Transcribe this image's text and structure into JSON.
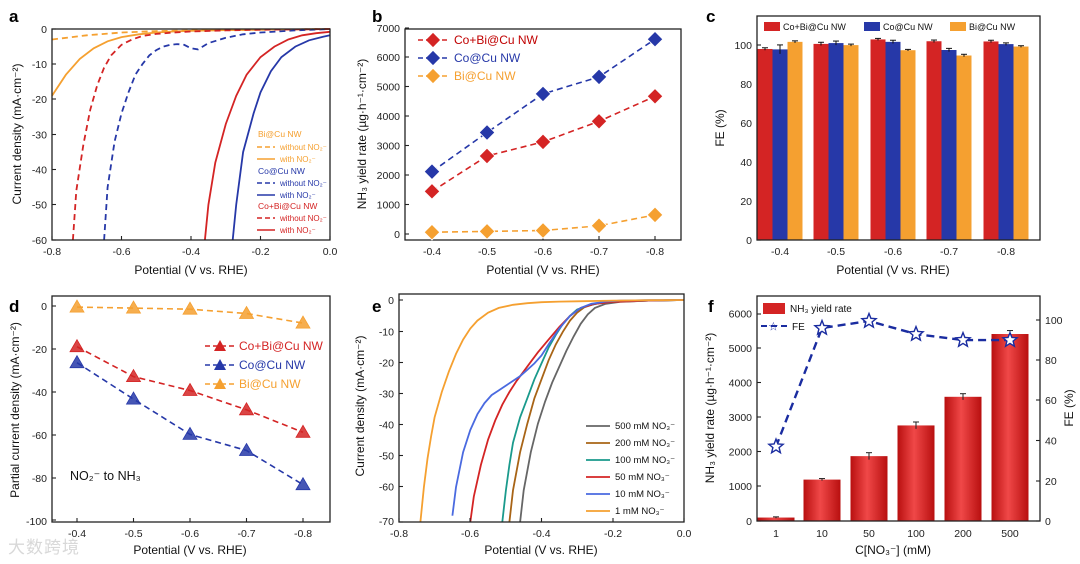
{
  "panels": {
    "a": {
      "label": "a",
      "ylabel": "Current density (mA·cm⁻²)",
      "xlabel": "Potential (V vs. RHE)",
      "xticks": [
        "-0.8",
        "-0.6",
        "-0.4",
        "-0.2",
        "0.0"
      ],
      "yticks": [
        "0",
        "-10",
        "-20",
        "-30",
        "-40",
        "-50",
        "-60"
      ],
      "legend": {
        "bi": "Bi@Cu NW",
        "co": "Co@Cu NW",
        "cobi": "Co+Bi@Cu NW",
        "without": "without NO₂⁻",
        "with": "with NO₂⁻"
      }
    },
    "b": {
      "label": "b",
      "ylabel": "NH₃ yield rate (µg·h⁻¹·cm⁻²)",
      "xlabel": "Potential (V vs. RHE)",
      "xticks": [
        "-0.4",
        "-0.5",
        "-0.6",
        "-0.7",
        "-0.8"
      ],
      "yticks": [
        "0",
        "1000",
        "2000",
        "3000",
        "4000",
        "5000",
        "6000",
        "7000"
      ],
      "legend": [
        "Co+Bi@Cu NW",
        "Co@Cu NW",
        "Bi@Cu NW"
      ]
    },
    "c": {
      "label": "c",
      "ylabel": "FE (%)",
      "xlabel": "Potential (V vs. RHE)",
      "xticks": [
        "-0.4",
        "-0.5",
        "-0.6",
        "-0.7",
        "-0.8"
      ],
      "yticks": [
        "0",
        "20",
        "40",
        "60",
        "80",
        "100"
      ],
      "legend": [
        "Co+Bi@Cu NW",
        "Co@Cu NW",
        "Bi@Cu NW"
      ]
    },
    "d": {
      "label": "d",
      "ylabel": "Partial current density (mA·cm⁻²)",
      "xlabel": "Potential (V vs. RHE)",
      "xticks": [
        "-0.4",
        "-0.5",
        "-0.6",
        "-0.7",
        "-0.8"
      ],
      "yticks": [
        "0",
        "-20",
        "-40",
        "-60",
        "-80",
        "-100"
      ],
      "legend": [
        "Co+Bi@Cu NW",
        "Co@Cu NW",
        "Bi@Cu NW"
      ],
      "annotation": "NO₂⁻ to NH₃"
    },
    "e": {
      "label": "e",
      "ylabel": "Current density (mA·cm⁻²)",
      "xlabel": "Potential (V vs. RHE)",
      "xticks": [
        "-0.8",
        "-0.6",
        "-0.4",
        "-0.2",
        "0.0"
      ],
      "yticks": [
        "0",
        "-10",
        "-20",
        "-30",
        "-40",
        "-50",
        "-60",
        "-70"
      ],
      "legend": [
        "500 mM NO₃⁻",
        "200 mM NO₃⁻",
        "100 mM NO₃⁻",
        "50 mM NO₃⁻",
        "10 mM NO₃⁻",
        "1 mM NO₃⁻"
      ]
    },
    "f": {
      "label": "f",
      "ylabel": "NH₃ yield rate (µg·h⁻¹·cm⁻²)",
      "y2label": "FE (%)",
      "xlabel": "C[NO₃⁻] (mM)",
      "xticks": [
        "1",
        "10",
        "50",
        "100",
        "200",
        "500"
      ],
      "yticks": [
        "0",
        "1000",
        "2000",
        "3000",
        "4000",
        "5000",
        "6000"
      ],
      "y2ticks": [
        "0",
        "20",
        "40",
        "60",
        "80",
        "100"
      ],
      "legend": [
        "NH₃ yield rate",
        "FE"
      ]
    }
  },
  "watermark": "大数跨境",
  "colors": {
    "red": "#d42424",
    "blue": "#2638a8",
    "orange": "#f5a030",
    "gray": "#666666",
    "brown": "#a86416",
    "teal": "#1a9a8c",
    "lightblue": "#4a6ae0"
  },
  "chart_data": [
    {
      "panel": "a",
      "type": "line",
      "title": "",
      "xlabel": "Potential (V vs. RHE)",
      "ylabel": "Current density (mA·cm-2)",
      "xlim": [
        -0.8,
        0.0
      ],
      "ylim": [
        -60,
        0
      ],
      "series": [
        {
          "name": "Bi@Cu NW without NO2-",
          "style": "dashed",
          "color": "orange",
          "x": [
            -0.8,
            -0.7,
            -0.6,
            -0.5,
            -0.4,
            -0.3,
            -0.2,
            -0.1,
            0.0
          ],
          "y": [
            -3,
            -1.8,
            -1,
            -0.6,
            -0.4,
            -0.3,
            -0.2,
            -0.1,
            0
          ]
        },
        {
          "name": "Bi@Cu NW with NO2-",
          "style": "solid",
          "color": "orange",
          "x": [
            -0.8,
            -0.76,
            -0.72,
            -0.68,
            -0.64,
            -0.6,
            -0.55,
            -0.5,
            -0.45,
            -0.4,
            -0.3,
            -0.2,
            -0.1,
            0.0
          ],
          "y": [
            -19,
            -13,
            -8.5,
            -5.5,
            -3.5,
            -2.3,
            -1.5,
            -1,
            -0.7,
            -0.5,
            -0.3,
            -0.2,
            -0.1,
            0
          ]
        },
        {
          "name": "Co@Cu NW without NO2-",
          "style": "dashed",
          "color": "blue",
          "x": [
            -0.65,
            -0.64,
            -0.62,
            -0.6,
            -0.58,
            -0.56,
            -0.54,
            -0.52,
            -0.5,
            -0.48,
            -0.46,
            -0.44,
            -0.42,
            -0.4,
            -0.38,
            -0.35,
            -0.3,
            -0.25,
            -0.2,
            -0.15,
            -0.1,
            -0.05,
            0.0
          ],
          "y": [
            -60,
            -45,
            -32,
            -24,
            -18,
            -13,
            -10,
            -7.5,
            -6,
            -5,
            -4.5,
            -4.3,
            -4.5,
            -5.5,
            -5.8,
            -4,
            -2.5,
            -1.5,
            -1,
            -0.7,
            -0.4,
            -0.2,
            0
          ]
        },
        {
          "name": "Co@Cu NW with NO2-",
          "style": "solid",
          "color": "blue",
          "x": [
            -0.28,
            -0.27,
            -0.25,
            -0.22,
            -0.2,
            -0.17,
            -0.14,
            -0.1,
            -0.06,
            -0.02,
            0.0
          ],
          "y": [
            -60,
            -50,
            -35,
            -24,
            -18,
            -12,
            -8,
            -5,
            -3.2,
            -2.2,
            -1.8
          ]
        },
        {
          "name": "Co+Bi@Cu NW without NO2-",
          "style": "dashed",
          "color": "red",
          "x": [
            -0.74,
            -0.73,
            -0.71,
            -0.69,
            -0.67,
            -0.65,
            -0.63,
            -0.6,
            -0.57,
            -0.54,
            -0.5,
            -0.45,
            -0.4,
            -0.3,
            -0.2,
            -0.1,
            0.0
          ],
          "y": [
            -60,
            -46,
            -33,
            -23,
            -16,
            -11,
            -7.5,
            -4.5,
            -3,
            -2,
            -1.4,
            -1,
            -0.7,
            -0.4,
            -0.2,
            -0.1,
            0
          ]
        },
        {
          "name": "Co+Bi@Cu NW with NO2-",
          "style": "solid",
          "color": "red",
          "x": [
            -0.36,
            -0.35,
            -0.33,
            -0.3,
            -0.27,
            -0.24,
            -0.2,
            -0.16,
            -0.12,
            -0.08,
            -0.04,
            0.0
          ],
          "y": [
            -60,
            -50,
            -38,
            -27,
            -19,
            -13,
            -8,
            -5,
            -3,
            -1.8,
            -1.2,
            -0.8
          ]
        }
      ]
    },
    {
      "panel": "b",
      "type": "line",
      "title": "",
      "xlabel": "Potential (V vs. RHE)",
      "ylabel": "NH3 yield rate (µg·h-1·cm-2)",
      "categories": [
        "-0.4",
        "-0.5",
        "-0.6",
        "-0.7",
        "-0.8"
      ],
      "ylim": [
        0,
        7000
      ],
      "series": [
        {
          "name": "Co+Bi@Cu NW",
          "color": "red",
          "values": [
            1450,
            2650,
            3130,
            3830,
            4680
          ]
        },
        {
          "name": "Co@Cu NW",
          "color": "blue",
          "values": [
            2120,
            3450,
            4760,
            5340,
            6620
          ]
        },
        {
          "name": "Bi@Cu NW",
          "color": "orange",
          "values": [
            60,
            90,
            120,
            280,
            650
          ]
        }
      ]
    },
    {
      "panel": "c",
      "type": "bar",
      "title": "",
      "xlabel": "Potential (V vs. RHE)",
      "ylabel": "FE (%)",
      "categories": [
        "-0.4",
        "-0.5",
        "-0.6",
        "-0.7",
        "-0.8"
      ],
      "ylim": [
        0,
        110
      ],
      "series": [
        {
          "name": "Co+Bi@Cu NW",
          "color": "red",
          "values": [
            93.8,
            96.3,
            98.5,
            97.6,
            97.5
          ],
          "errors": [
            0.6,
            0.8,
            0.5,
            0.6,
            0.6
          ]
        },
        {
          "name": "Co@Cu NW",
          "color": "blue",
          "values": [
            93.6,
            96.7,
            97.3,
            93.3,
            96.2
          ],
          "errors": [
            2.2,
            1.0,
            0.8,
            0.8,
            0.6
          ]
        },
        {
          "name": "Bi@Cu NW",
          "color": "orange",
          "values": [
            97.3,
            95.7,
            93.2,
            90.6,
            95.0
          ],
          "errors": [
            0.5,
            0.5,
            0.4,
            0.6,
            0.4
          ]
        }
      ]
    },
    {
      "panel": "d",
      "type": "line",
      "title": "",
      "xlabel": "Potential (V vs. RHE)",
      "ylabel": "Partial current density (mA·cm-2)",
      "categories": [
        "-0.4",
        "-0.5",
        "-0.6",
        "-0.7",
        "-0.8"
      ],
      "ylim": [
        -100,
        5
      ],
      "series": [
        {
          "name": "Co+Bi@Cu NW",
          "color": "red",
          "values": [
            -19,
            -33,
            -39.5,
            -48.5,
            -59
          ]
        },
        {
          "name": "Co@Cu NW",
          "color": "blue",
          "values": [
            -26.5,
            -43.5,
            -60,
            -67.5,
            -83.5
          ]
        },
        {
          "name": "Bi@Cu NW",
          "color": "orange",
          "values": [
            -0.5,
            -1,
            -1.5,
            -3.5,
            -8
          ]
        }
      ]
    },
    {
      "panel": "e",
      "type": "line",
      "title": "",
      "xlabel": "Potential (V vs. RHE)",
      "ylabel": "Current density (mA·cm-2)",
      "xlim": [
        -0.8,
        0.0
      ],
      "ylim": [
        -70,
        2
      ],
      "series": [
        {
          "name": "500 mM NO3-",
          "color": "gray",
          "x": [
            -0.46,
            -0.45,
            -0.43,
            -0.41,
            -0.39,
            -0.37,
            -0.35,
            -0.33,
            -0.31,
            -0.29,
            -0.27,
            -0.25,
            -0.22,
            -0.18,
            -0.1,
            0.0
          ],
          "y": [
            -70,
            -60,
            -48,
            -39,
            -32,
            -26,
            -21,
            -16,
            -11.5,
            -7.5,
            -4.5,
            -2.5,
            -1.2,
            -0.6,
            -0.2,
            0
          ]
        },
        {
          "name": "200 mM NO3-",
          "color": "brown",
          "x": [
            -0.49,
            -0.48,
            -0.46,
            -0.44,
            -0.42,
            -0.4,
            -0.38,
            -0.36,
            -0.34,
            -0.32,
            -0.3,
            -0.28,
            -0.25,
            -0.2,
            -0.1,
            0.0
          ],
          "y": [
            -70,
            -60,
            -48,
            -39,
            -31,
            -25,
            -19,
            -14,
            -10,
            -6.5,
            -4,
            -2.3,
            -1.2,
            -0.5,
            -0.2,
            0
          ]
        },
        {
          "name": "100 mM NO3-",
          "color": "teal",
          "x": [
            -0.51,
            -0.5,
            -0.49,
            -0.48,
            -0.46,
            -0.44,
            -0.42,
            -0.4,
            -0.38,
            -0.36,
            -0.34,
            -0.32,
            -0.3,
            -0.27,
            -0.24,
            -0.2,
            -0.1,
            0.0
          ],
          "y": [
            -70,
            -60,
            -52,
            -45,
            -37,
            -31,
            -25,
            -20,
            -15,
            -11,
            -7.5,
            -5,
            -3,
            -1.8,
            -1,
            -0.5,
            -0.2,
            0
          ]
        },
        {
          "name": "50 mM NO3-",
          "color": "red",
          "x": [
            -0.6,
            -0.59,
            -0.57,
            -0.55,
            -0.53,
            -0.51,
            -0.49,
            -0.47,
            -0.45,
            -0.43,
            -0.41,
            -0.38,
            -0.35,
            -0.32,
            -0.29,
            -0.25,
            -0.2,
            -0.1,
            0.0
          ],
          "y": [
            -70,
            -62,
            -52,
            -44,
            -38,
            -33,
            -29,
            -25.5,
            -22.5,
            -19.5,
            -16.5,
            -12.5,
            -8.5,
            -5,
            -2.5,
            -1.2,
            -0.6,
            -0.2,
            0
          ]
        },
        {
          "name": "10 mM NO3-",
          "color": "lightblue",
          "x": [
            -0.65,
            -0.64,
            -0.62,
            -0.6,
            -0.58,
            -0.56,
            -0.54,
            -0.52,
            -0.5,
            -0.48,
            -0.46,
            -0.44,
            -0.42,
            -0.4,
            -0.38,
            -0.35,
            -0.32,
            -0.29,
            -0.26,
            -0.22,
            -0.18,
            -0.1,
            0.0
          ],
          "y": [
            -68,
            -59,
            -48,
            -41,
            -36,
            -32.5,
            -30,
            -28.5,
            -27,
            -25.5,
            -24,
            -22,
            -20,
            -17.5,
            -14,
            -9,
            -5,
            -2.5,
            -1.2,
            -0.5,
            -0.2,
            -0.05,
            0
          ]
        },
        {
          "name": "1 mM NO3-",
          "color": "orange",
          "x": [
            -0.74,
            -0.73,
            -0.72,
            -0.71,
            -0.7,
            -0.68,
            -0.66,
            -0.64,
            -0.62,
            -0.6,
            -0.58,
            -0.55,
            -0.52,
            -0.48,
            -0.44,
            -0.4,
            -0.35,
            -0.3,
            -0.2,
            -0.1,
            0.0
          ],
          "y": [
            -70,
            -59,
            -50,
            -43,
            -37,
            -29,
            -22.5,
            -17,
            -12.5,
            -9,
            -6.5,
            -4,
            -2.5,
            -1.5,
            -1,
            -0.7,
            -0.5,
            -0.4,
            -0.2,
            -0.05,
            0
          ]
        }
      ]
    },
    {
      "panel": "f",
      "type": "bar",
      "title": "",
      "xlabel": "C[NO3-] (mM)",
      "ylabel": "NH3 yield rate (µg·h-1·cm-2)",
      "y2label": "FE (%)",
      "categories": [
        "1",
        "10",
        "50",
        "100",
        "200",
        "500"
      ],
      "ylim": [
        0,
        6500
      ],
      "y2lim": [
        0,
        112
      ],
      "series": [
        {
          "name": "NH3 yield rate",
          "type": "bar",
          "color": "red",
          "values": [
            100,
            1200,
            1880,
            2770,
            3600,
            5420
          ],
          "errors": [
            20,
            30,
            100,
            100,
            90,
            100
          ]
        },
        {
          "name": "FE",
          "type": "line",
          "color": "blue",
          "axis": "right",
          "values": [
            37,
            96,
            99.5,
            93,
            90,
            90
          ]
        }
      ]
    }
  ]
}
